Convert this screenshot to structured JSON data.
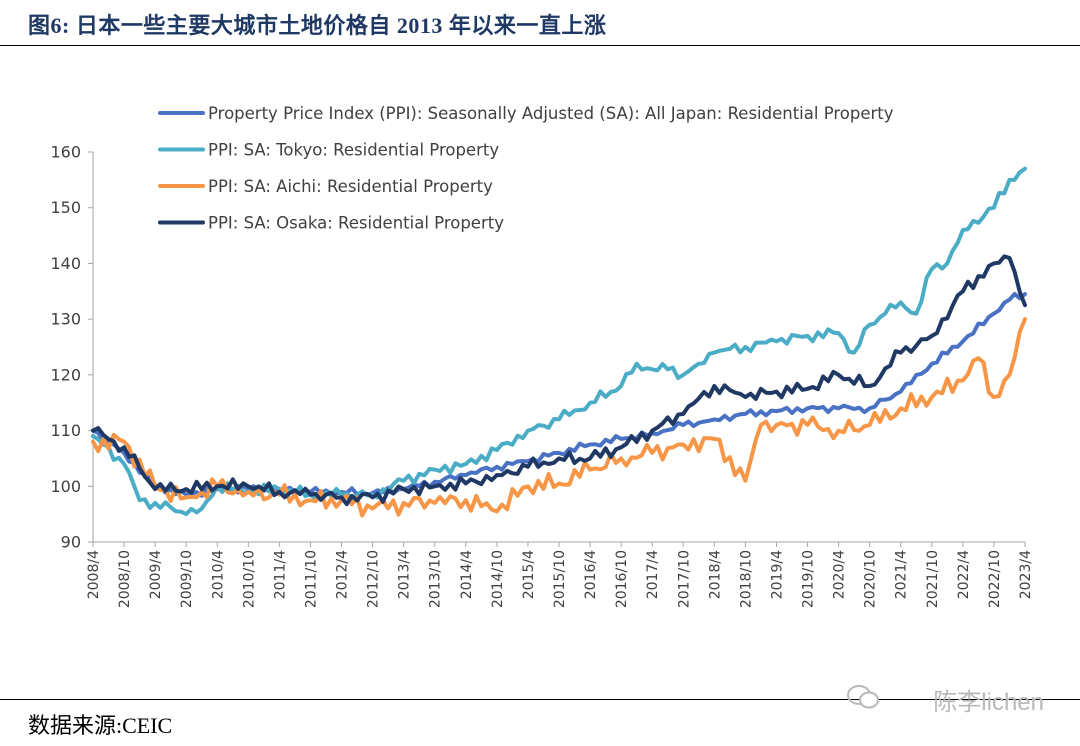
{
  "figure": {
    "title": "图6:  日本一些主要大城市土地价格自 2013 年以来一直上涨",
    "source": "数据来源:CEIC",
    "watermark": "陈李lichen"
  },
  "chart_data": {
    "type": "line",
    "title": "",
    "xlabel": "",
    "ylabel": "",
    "ylim": [
      90,
      160
    ],
    "yticks": [
      90,
      100,
      110,
      120,
      130,
      140,
      150,
      160
    ],
    "x_start": "2008-04",
    "x_end": "2023-04",
    "frequency": "monthly",
    "x_ticks": [
      "2008/4",
      "2008/10",
      "2009/4",
      "2009/10",
      "2010/4",
      "2010/10",
      "2011/4",
      "2011/10",
      "2012/4",
      "2012/10",
      "2013/4",
      "2013/10",
      "2014/4",
      "2014/10",
      "2015/4",
      "2015/10",
      "2016/4",
      "2016/10",
      "2017/4",
      "2017/10",
      "2018/4",
      "2018/10",
      "2019/4",
      "2019/10",
      "2020/4",
      "2020/10",
      "2021/4",
      "2021/10",
      "2022/4",
      "2022/10",
      "2023/4"
    ],
    "grid": false,
    "legend_position": "top-left",
    "series": [
      {
        "name": "Property Price Index (PPI): Seasonally Adjusted (SA): All Japan: Residential Property",
        "color": "#4a72c4",
        "points": [
          [
            "2008-04",
            110
          ],
          [
            "2008-10",
            106
          ],
          [
            "2009-04",
            100
          ],
          [
            "2009-10",
            98.5
          ],
          [
            "2010-04",
            99.5
          ],
          [
            "2010-10",
            99.5
          ],
          [
            "2011-04",
            99.5
          ],
          [
            "2011-10",
            99
          ],
          [
            "2012-04",
            99
          ],
          [
            "2012-10",
            98.8
          ],
          [
            "2013-04",
            99.5
          ],
          [
            "2013-10",
            100.8
          ],
          [
            "2014-04",
            102
          ],
          [
            "2014-10",
            103.5
          ],
          [
            "2015-04",
            104.5
          ],
          [
            "2015-10",
            106
          ],
          [
            "2016-04",
            107.5
          ],
          [
            "2016-10",
            108.5
          ],
          [
            "2017-04",
            109.5
          ],
          [
            "2017-10",
            111
          ],
          [
            "2018-04",
            112
          ],
          [
            "2018-10",
            113
          ],
          [
            "2019-04",
            113.5
          ],
          [
            "2019-10",
            114
          ],
          [
            "2020-04",
            114
          ],
          [
            "2020-10",
            114
          ],
          [
            "2021-04",
            117
          ],
          [
            "2021-10",
            122
          ],
          [
            "2022-04",
            126
          ],
          [
            "2022-10",
            131
          ],
          [
            "2023-01",
            133.5
          ],
          [
            "2023-04",
            134.5
          ]
        ]
      },
      {
        "name": "PPI: SA: Tokyo: Residential Property",
        "color": "#4bacc6",
        "points": [
          [
            "2008-04",
            109
          ],
          [
            "2008-10",
            104
          ],
          [
            "2009-01",
            97.5
          ],
          [
            "2009-04",
            97
          ],
          [
            "2009-10",
            95
          ],
          [
            "2010-01",
            96
          ],
          [
            "2010-04",
            100
          ],
          [
            "2010-10",
            99
          ],
          [
            "2011-04",
            99.5
          ],
          [
            "2011-10",
            98.5
          ],
          [
            "2012-04",
            98.5
          ],
          [
            "2012-10",
            98.5
          ],
          [
            "2013-04",
            101
          ],
          [
            "2013-10",
            103
          ],
          [
            "2014-04",
            104
          ],
          [
            "2014-10",
            106.5
          ],
          [
            "2015-04",
            110
          ],
          [
            "2015-10",
            112
          ],
          [
            "2016-04",
            115
          ],
          [
            "2016-10",
            118
          ],
          [
            "2017-01",
            122
          ],
          [
            "2017-04",
            121
          ],
          [
            "2017-07",
            121
          ],
          [
            "2017-10",
            120
          ],
          [
            "2018-01",
            122
          ],
          [
            "2018-04",
            124
          ],
          [
            "2018-10",
            125
          ],
          [
            "2019-04",
            126
          ],
          [
            "2019-10",
            127
          ],
          [
            "2020-04",
            127.5
          ],
          [
            "2020-07",
            124
          ],
          [
            "2020-10",
            129
          ],
          [
            "2021-01",
            131
          ],
          [
            "2021-04",
            133
          ],
          [
            "2021-07",
            131
          ],
          [
            "2021-10",
            139
          ],
          [
            "2022-01",
            140
          ],
          [
            "2022-04",
            146
          ],
          [
            "2022-10",
            150
          ],
          [
            "2023-01",
            155
          ],
          [
            "2023-04",
            157
          ]
        ]
      },
      {
        "name": "PPI: SA: Aichi: Residential Property",
        "color": "#f79646",
        "points": [
          [
            "2008-04",
            108
          ],
          [
            "2008-10",
            108
          ],
          [
            "2009-04",
            100
          ],
          [
            "2009-10",
            98
          ],
          [
            "2010-04",
            100
          ],
          [
            "2010-10",
            99
          ],
          [
            "2011-04",
            98.5
          ],
          [
            "2011-10",
            97.5
          ],
          [
            "2012-04",
            97.5
          ],
          [
            "2012-10",
            96
          ],
          [
            "2013-04",
            97
          ],
          [
            "2013-10",
            97
          ],
          [
            "2014-04",
            97.5
          ],
          [
            "2014-10",
            95.5
          ],
          [
            "2015-04",
            100
          ],
          [
            "2015-10",
            100.5
          ],
          [
            "2016-04",
            103
          ],
          [
            "2016-10",
            105
          ],
          [
            "2017-04",
            106
          ],
          [
            "2017-10",
            107.5
          ],
          [
            "2018-04",
            108.5
          ],
          [
            "2018-10",
            101
          ],
          [
            "2019-01",
            111
          ],
          [
            "2019-04",
            111
          ],
          [
            "2019-10",
            111
          ],
          [
            "2020-04",
            110
          ],
          [
            "2020-10",
            111
          ],
          [
            "2021-04",
            114
          ],
          [
            "2021-10",
            116
          ],
          [
            "2022-04",
            119
          ],
          [
            "2022-07",
            123
          ],
          [
            "2022-10",
            116
          ],
          [
            "2023-01",
            120
          ],
          [
            "2023-04",
            130
          ]
        ]
      },
      {
        "name": "PPI: SA: Osaka: Residential Property",
        "color": "#1f3864",
        "points": [
          [
            "2008-04",
            110
          ],
          [
            "2008-10",
            107
          ],
          [
            "2009-04",
            99.5
          ],
          [
            "2009-10",
            99.5
          ],
          [
            "2010-04",
            100
          ],
          [
            "2010-10",
            100
          ],
          [
            "2011-04",
            99
          ],
          [
            "2011-10",
            98.5
          ],
          [
            "2012-04",
            98
          ],
          [
            "2012-10",
            98
          ],
          [
            "2013-04",
            99.5
          ],
          [
            "2013-10",
            100
          ],
          [
            "2014-04",
            100.5
          ],
          [
            "2014-10",
            102
          ],
          [
            "2015-04",
            103.5
          ],
          [
            "2015-10",
            105
          ],
          [
            "2016-04",
            105
          ],
          [
            "2016-10",
            107
          ],
          [
            "2017-04",
            110
          ],
          [
            "2017-10",
            113
          ],
          [
            "2018-04",
            118
          ],
          [
            "2018-10",
            116
          ],
          [
            "2019-04",
            117
          ],
          [
            "2019-10",
            117.5
          ],
          [
            "2020-04",
            120
          ],
          [
            "2020-10",
            118
          ],
          [
            "2021-04",
            124
          ],
          [
            "2021-10",
            127
          ],
          [
            "2022-04",
            135
          ],
          [
            "2022-10",
            140
          ],
          [
            "2023-01",
            141
          ],
          [
            "2023-04",
            132.5
          ]
        ]
      }
    ]
  }
}
